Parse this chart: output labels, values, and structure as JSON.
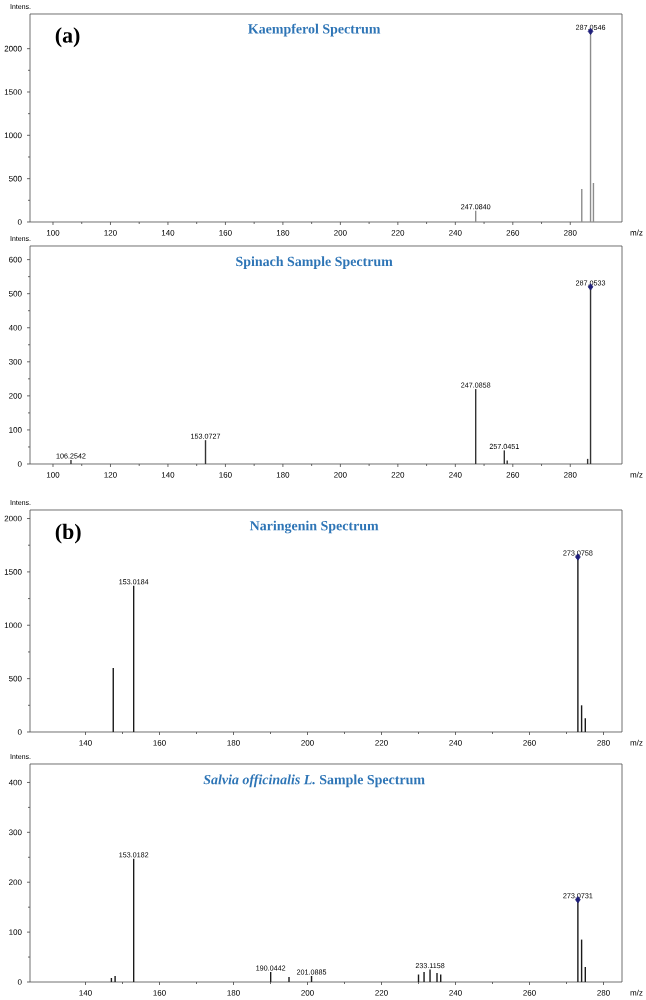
{
  "chart_data": [
    {
      "type": "bar",
      "title": "Kaempferol Spectrum",
      "xlabel": "m/z",
      "ylabel": "Intens.",
      "xlim": [
        92,
        298
      ],
      "ylim": [
        0,
        2400
      ],
      "xticks": [
        100,
        120,
        140,
        160,
        180,
        200,
        220,
        240,
        260,
        280
      ],
      "yticks": [
        0,
        500,
        1000,
        1500,
        2000
      ],
      "series": [
        {
          "color": "#8c8c8c",
          "x": [
            247.084,
            284.0,
            287.0546,
            288.06
          ],
          "values": [
            130,
            380,
            2200,
            450
          ]
        },
        {
          "type": "scatter",
          "marker": "diamond",
          "color": "#1f1f7a",
          "x": [
            287.0546
          ],
          "values": [
            2200
          ]
        }
      ],
      "annotations": [
        "(a)",
        {
          "text": "247.0840",
          "x": 247.084,
          "y": 130
        },
        {
          "text": "287.0546",
          "x": 287.0546,
          "y": 2200
        }
      ]
    },
    {
      "type": "bar",
      "title": "Spinach Sample Spectrum",
      "xlabel": "m/z",
      "ylabel": "Intens.",
      "xlim": [
        92,
        298
      ],
      "ylim": [
        0,
        640
      ],
      "xticks": [
        100,
        120,
        140,
        160,
        180,
        200,
        220,
        240,
        260,
        280
      ],
      "yticks": [
        0,
        100,
        200,
        300,
        400,
        500,
        600
      ],
      "series": [
        {
          "color": "#333333",
          "x": [
            106.2542,
            153.0727,
            247.0858,
            257.0451,
            258.05,
            286.04,
            287.0533
          ],
          "values": [
            12,
            70,
            220,
            40,
            10,
            15,
            520
          ]
        },
        {
          "type": "scatter",
          "marker": "diamond",
          "color": "#1f1f7a",
          "x": [
            287.0533
          ],
          "values": [
            520
          ]
        }
      ],
      "annotations": [
        {
          "text": "106.2542",
          "x": 106.2542,
          "y": 12
        },
        {
          "text": "153.0727",
          "x": 153.0727,
          "y": 70
        },
        {
          "text": "247.0858",
          "x": 247.0858,
          "y": 220
        },
        {
          "text": "257.0451",
          "x": 257.0451,
          "y": 40
        },
        {
          "text": "287.0533",
          "x": 287.0533,
          "y": 520
        }
      ]
    },
    {
      "type": "bar",
      "title": "Naringenin Spectrum",
      "xlabel": "m/z",
      "ylabel": "Intens.",
      "xlim": [
        125,
        285
      ],
      "ylim": [
        0,
        2080
      ],
      "xticks": [
        140,
        160,
        180,
        200,
        220,
        240,
        260,
        280
      ],
      "yticks": [
        0,
        500,
        1000,
        1500,
        2000
      ],
      "series": [
        {
          "color": "#1a1a1a",
          "x": [
            147.5,
            153.0184,
            273.0758,
            274.08,
            275.08
          ],
          "values": [
            600,
            1370,
            1640,
            250,
            130
          ]
        },
        {
          "type": "scatter",
          "marker": "diamond",
          "color": "#1f1f7a",
          "x": [
            273.0758
          ],
          "values": [
            1640
          ]
        }
      ],
      "annotations": [
        "(b)",
        {
          "text": "153.0184",
          "x": 153.0184,
          "y": 1370
        },
        {
          "text": "273.0758",
          "x": 273.0758,
          "y": 1640
        }
      ]
    },
    {
      "type": "bar",
      "title": "*Salvia officinalis L.* Sample Spectrum",
      "xlabel": "m/z",
      "ylabel": "Intens.",
      "xlim": [
        125,
        285
      ],
      "ylim": [
        0,
        437
      ],
      "xticks": [
        140,
        160,
        180,
        200,
        220,
        240,
        260,
        280
      ],
      "yticks": [
        0,
        100,
        200,
        300,
        400
      ],
      "series": [
        {
          "color": "#1a1a1a",
          "x": [
            147.0,
            148.0,
            153.0182,
            190.0442,
            195.0,
            201.0885,
            230.0,
            231.5,
            233.1158,
            235.0,
            236.0,
            273.0731,
            274.08,
            275.08
          ],
          "values": [
            8,
            12,
            247,
            20,
            10,
            12,
            15,
            20,
            25,
            18,
            15,
            165,
            85,
            30
          ]
        },
        {
          "type": "scatter",
          "marker": "diamond",
          "color": "#1f1f7a",
          "x": [
            273.0731
          ],
          "values": [
            165
          ]
        }
      ],
      "annotations": [
        {
          "text": "153.0182",
          "x": 153.0182,
          "y": 247
        },
        {
          "text": "190.0442",
          "x": 190.0442,
          "y": 20
        },
        {
          "text": "201.0885",
          "x": 201.0885,
          "y": 12
        },
        {
          "text": "233.1158",
          "x": 233.1158,
          "y": 25
        },
        {
          "text": "273.0731",
          "x": 273.0731,
          "y": 165
        }
      ]
    }
  ]
}
